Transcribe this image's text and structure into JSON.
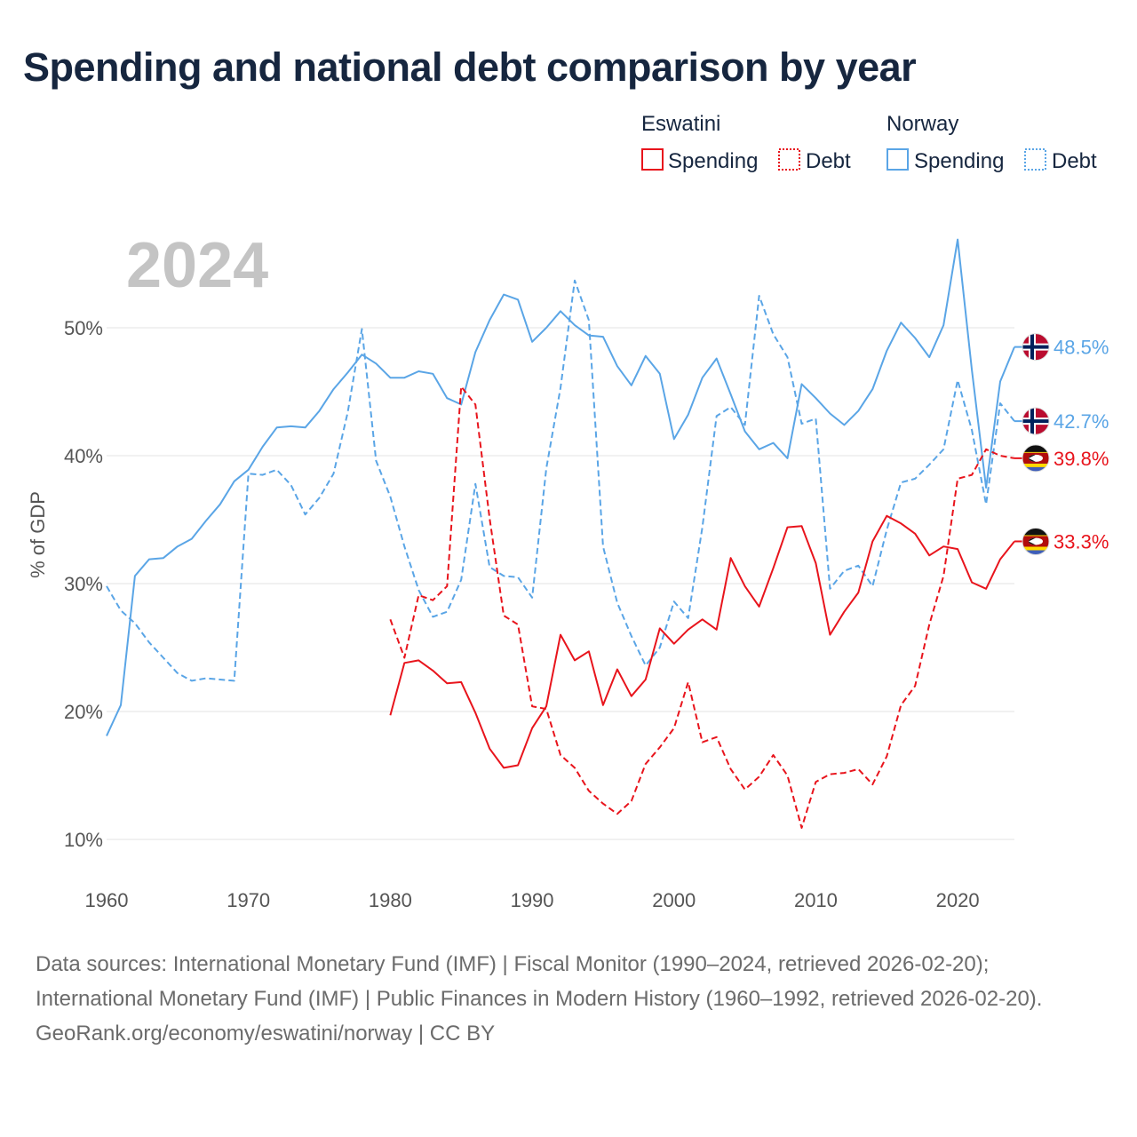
{
  "title": "Spending and national debt comparison by year",
  "year_label": "2024",
  "legend": {
    "groups": [
      {
        "country": "Eswatini",
        "color": "#e8141c",
        "items": [
          {
            "label": "Spending",
            "style": "solid"
          },
          {
            "label": "Debt",
            "style": "dashed"
          }
        ]
      },
      {
        "country": "Norway",
        "color": "#5aa5e6",
        "items": [
          {
            "label": "Spending",
            "style": "solid"
          },
          {
            "label": "Debt",
            "style": "dashed"
          }
        ]
      }
    ]
  },
  "footer": {
    "sources": "Data sources: International Monetary Fund (IMF) | Fiscal Monitor (1990–2024, retrieved 2026-02-20); International Monetary Fund (IMF) | Public Finances in Modern History (1960–1992, retrieved 2026-02-20).",
    "credit": "GeoRank.org/economy/eswatini/norway | CC BY"
  },
  "chart_data": {
    "type": "line",
    "title": "Spending and national debt comparison by year",
    "xlabel": "",
    "ylabel": "% of GDP",
    "xlim": [
      1960,
      2024
    ],
    "ylim": [
      10,
      55
    ],
    "x_ticks": [
      1960,
      1970,
      1980,
      1990,
      2000,
      2010,
      2020
    ],
    "y_ticks": [
      10,
      20,
      30,
      40,
      50
    ],
    "y_tick_labels": [
      "10%",
      "20%",
      "30%",
      "40%",
      "50%"
    ],
    "grid": true,
    "series": [
      {
        "name": "Norway Spending",
        "country": "Norway",
        "metric": "Spending",
        "color": "#5aa5e6",
        "dash": "solid",
        "flag": "norway",
        "end_label": "48.5%",
        "start_year": 1960,
        "values": [
          18.1,
          20.5,
          30.6,
          31.9,
          32.0,
          32.9,
          33.5,
          34.9,
          36.2,
          38.0,
          38.9,
          40.7,
          42.2,
          42.3,
          42.2,
          43.5,
          45.2,
          46.5,
          47.9,
          47.2,
          46.1,
          46.1,
          46.6,
          46.4,
          44.5,
          44.0,
          48.1,
          50.6,
          52.6,
          52.2,
          48.9,
          50.0,
          51.3,
          50.2,
          49.4,
          49.3,
          47.0,
          45.5,
          47.8,
          46.4,
          41.3,
          43.2,
          46.1,
          47.6,
          44.8,
          41.9,
          40.5,
          41.0,
          39.8,
          45.6,
          44.5,
          43.3,
          42.4,
          43.5,
          45.2,
          48.2,
          50.4,
          49.2,
          47.7,
          50.2,
          56.9,
          46.7,
          37.5,
          45.8,
          48.5
        ]
      },
      {
        "name": "Norway Debt",
        "country": "Norway",
        "metric": "Debt",
        "color": "#5aa5e6",
        "dash": "dashed",
        "flag": "norway",
        "end_label": "42.7%",
        "start_year": 1960,
        "values": [
          29.8,
          27.9,
          26.9,
          25.4,
          24.2,
          23.0,
          22.4,
          22.6,
          22.5,
          22.4,
          38.6,
          38.5,
          38.9,
          37.7,
          35.4,
          36.7,
          38.6,
          43.4,
          49.9,
          39.6,
          36.8,
          32.9,
          29.5,
          27.4,
          27.8,
          30.3,
          37.8,
          31.3,
          30.6,
          30.5,
          28.9,
          39.0,
          45.3,
          53.7,
          50.6,
          32.9,
          28.5,
          25.9,
          23.6,
          25.0,
          28.6,
          27.3,
          34.4,
          43.1,
          43.8,
          42.4,
          52.5,
          49.5,
          47.7,
          42.5,
          42.9,
          29.6,
          31.0,
          31.4,
          29.8,
          34.2,
          37.9,
          38.2,
          39.3,
          40.5,
          45.9,
          42.0,
          36.2,
          44.1,
          42.7
        ]
      },
      {
        "name": "Eswatini Spending",
        "country": "Eswatini",
        "metric": "Spending",
        "color": "#e8141c",
        "dash": "solid",
        "flag": "eswatini",
        "end_label": "33.3%",
        "start_year": 1980,
        "values": [
          19.7,
          23.8,
          24.0,
          23.2,
          22.2,
          22.3,
          19.9,
          17.1,
          15.6,
          15.8,
          18.7,
          20.4,
          26.0,
          24.0,
          24.7,
          20.5,
          23.3,
          21.2,
          22.5,
          26.5,
          25.3,
          26.4,
          27.2,
          26.4,
          32.0,
          29.8,
          28.2,
          31.2,
          34.4,
          34.5,
          31.6,
          26.0,
          27.8,
          29.3,
          33.3,
          35.3,
          34.7,
          33.9,
          32.2,
          32.9,
          32.7,
          30.1,
          29.6,
          31.9,
          33.3
        ]
      },
      {
        "name": "Eswatini Debt",
        "country": "Eswatini",
        "metric": "Debt",
        "color": "#e8141c",
        "dash": "dashed",
        "flag": "eswatini",
        "end_label": "39.8%",
        "start_year": 1980,
        "values": [
          27.2,
          24.2,
          29.1,
          28.7,
          29.8,
          45.4,
          44.0,
          35.1,
          27.5,
          26.8,
          20.4,
          20.2,
          16.6,
          15.6,
          13.8,
          12.8,
          12.0,
          13.0,
          15.9,
          17.2,
          18.7,
          22.3,
          17.6,
          18.0,
          15.5,
          13.9,
          14.9,
          16.6,
          15.0,
          10.9,
          14.5,
          15.1,
          15.2,
          15.5,
          14.3,
          16.5,
          20.5,
          22.0,
          26.8,
          30.6,
          38.2,
          38.5,
          40.5,
          40.0,
          39.8
        ]
      }
    ]
  }
}
